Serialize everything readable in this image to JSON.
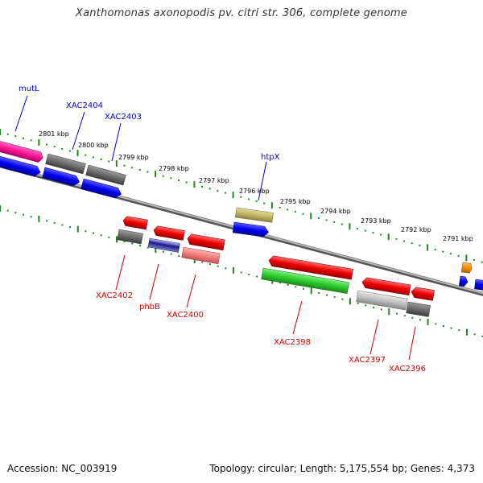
{
  "title": "Xanthomonas axonopodis pv. citri str. 306, complete genome",
  "footer": {
    "accession": "Accession: NC_003919",
    "topology": "Topology: circular; Length: 5,175,554 bp; Genes: 4,373"
  },
  "colors": {
    "backbone": "#8c8c8c",
    "ticks": "#1f8a1f",
    "top_labels": "#0000cc",
    "bottom_labels": "#cc0000"
  },
  "scale": [
    "2801 kbp",
    "2800 kbp",
    "2799 kbp",
    "2798 kbp",
    "2797 kbp",
    "2796 kbp",
    "2795 kbp",
    "2794 kbp",
    "2793 kbp",
    "2792 kbp",
    "2791 kbp"
  ],
  "gene_labels": {
    "top": [
      "mutL",
      "XAC2404",
      "XAC2403",
      "htpX"
    ],
    "bottom": [
      "XAC2402",
      "phbB",
      "XAC2400",
      "XAC2398",
      "XAC2397",
      "XAC2396"
    ]
  },
  "feature_colors": [
    "magenta",
    "gray",
    "blue",
    "red",
    "khaki",
    "pink",
    "navy",
    "green",
    "silver",
    "orange"
  ]
}
